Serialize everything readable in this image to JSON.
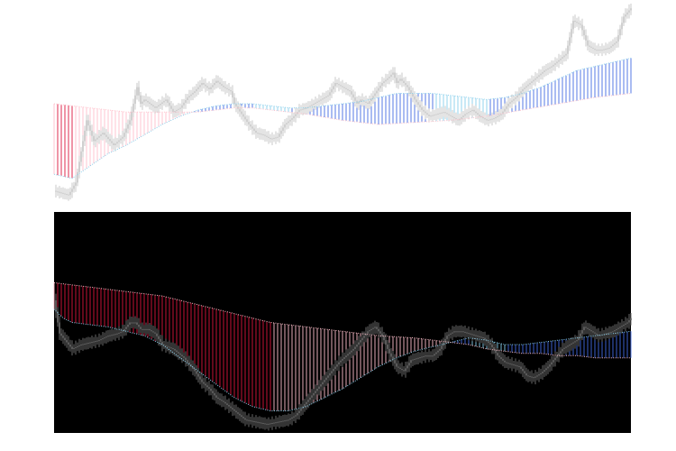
{
  "figure": {
    "background": "#ffffff"
  },
  "chart_data": [
    {
      "type": "line",
      "panel": "top",
      "background": "#ffffff",
      "x_range": [
        0,
        320
      ],
      "ylim": [
        0,
        100
      ],
      "grid": false,
      "legend": "none",
      "series": [
        {
          "role": "price",
          "color": "#c8c8c8",
          "anchors": [
            [
              0,
              8
            ],
            [
              8,
              6
            ],
            [
              12,
              12
            ],
            [
              18,
              42
            ],
            [
              22,
              32
            ],
            [
              27,
              36
            ],
            [
              33,
              30
            ],
            [
              38,
              34
            ],
            [
              42,
              42
            ],
            [
              46,
              58
            ],
            [
              48,
              50
            ],
            [
              50,
              52
            ],
            [
              56,
              48
            ],
            [
              62,
              52
            ],
            [
              66,
              46
            ],
            [
              70,
              48
            ],
            [
              74,
              53
            ],
            [
              78,
              56
            ],
            [
              82,
              60
            ],
            [
              86,
              57
            ],
            [
              90,
              61
            ],
            [
              94,
              58
            ],
            [
              98,
              56
            ],
            [
              100,
              50
            ],
            [
              104,
              45
            ],
            [
              108,
              40
            ],
            [
              112,
              36
            ],
            [
              116,
              35
            ],
            [
              120,
              33
            ],
            [
              124,
              34
            ],
            [
              128,
              40
            ],
            [
              132,
              43
            ],
            [
              136,
              47
            ],
            [
              140,
              48
            ],
            [
              144,
              50
            ],
            [
              148,
              52
            ],
            [
              152,
              54
            ],
            [
              156,
              60
            ],
            [
              160,
              58
            ],
            [
              164,
              56
            ],
            [
              168,
              50
            ],
            [
              170,
              52
            ],
            [
              174,
              50
            ],
            [
              178,
              55
            ],
            [
              182,
              60
            ],
            [
              186,
              63
            ],
            [
              188,
              65
            ],
            [
              190,
              60
            ],
            [
              192,
              62
            ],
            [
              196,
              58
            ],
            [
              200,
              52
            ],
            [
              204,
              47
            ],
            [
              208,
              44
            ],
            [
              212,
              45
            ],
            [
              216,
              46
            ],
            [
              220,
              44
            ],
            [
              224,
              42
            ],
            [
              228,
              45
            ],
            [
              232,
              47
            ],
            [
              236,
              44
            ],
            [
              240,
              42
            ],
            [
              244,
              43
            ],
            [
              248,
              45
            ],
            [
              252,
              50
            ],
            [
              256,
              53
            ],
            [
              260,
              57
            ],
            [
              264,
              60
            ],
            [
              268,
              63
            ],
            [
              272,
              66
            ],
            [
              276,
              68
            ],
            [
              280,
              71
            ],
            [
              284,
              74
            ],
            [
              288,
              90
            ],
            [
              292,
              88
            ],
            [
              296,
              78
            ],
            [
              300,
              76
            ],
            [
              304,
              76
            ],
            [
              308,
              77
            ],
            [
              312,
              80
            ],
            [
              316,
              92
            ],
            [
              320,
              96
            ]
          ]
        },
        {
          "role": "fast-ma",
          "color": "#87ceeb",
          "anchors": [
            [
              0,
              16
            ],
            [
              10,
              14
            ],
            [
              20,
              20
            ],
            [
              30,
              26
            ],
            [
              40,
              30
            ],
            [
              50,
              35
            ],
            [
              60,
              40
            ],
            [
              70,
              44
            ],
            [
              80,
              47
            ],
            [
              90,
              49
            ],
            [
              100,
              50
            ],
            [
              110,
              50
            ],
            [
              120,
              49
            ],
            [
              130,
              48
            ],
            [
              140,
              48
            ],
            [
              150,
              49
            ],
            [
              160,
              50
            ],
            [
              170,
              51
            ],
            [
              180,
              53
            ],
            [
              190,
              55
            ],
            [
              200,
              55
            ],
            [
              210,
              55
            ],
            [
              220,
              54
            ],
            [
              230,
              53
            ],
            [
              240,
              52
            ],
            [
              250,
              53
            ],
            [
              260,
              55
            ],
            [
              270,
              58
            ],
            [
              280,
              62
            ],
            [
              290,
              66
            ],
            [
              300,
              68
            ],
            [
              310,
              70
            ],
            [
              320,
              72
            ]
          ]
        },
        {
          "role": "slow-ma",
          "color": "#ffc0cb",
          "anchors": [
            [
              0,
              50
            ],
            [
              20,
              48
            ],
            [
              40,
              46
            ],
            [
              60,
              46
            ],
            [
              80,
              46
            ],
            [
              100,
              48
            ],
            [
              110,
              48
            ],
            [
              120,
              47
            ],
            [
              140,
              45
            ],
            [
              160,
              42
            ],
            [
              180,
              40
            ],
            [
              200,
              41
            ],
            [
              220,
              42
            ],
            [
              240,
              44
            ],
            [
              260,
              47
            ],
            [
              280,
              50
            ],
            [
              300,
              53
            ],
            [
              320,
              55
            ]
          ]
        }
      ],
      "band": {
        "between": [
          "fast-ma",
          "slow-ma"
        ],
        "colors": {
          "fast_above_rising": "#4169e1",
          "fast_above_falling": "#87ceeb",
          "fast_below_rising": "#ffc0cb",
          "fast_below_falling": "#dc143c"
        }
      }
    },
    {
      "type": "line",
      "panel": "bottom",
      "background": "#000000",
      "x_range": [
        0,
        320
      ],
      "ylim": [
        0,
        100
      ],
      "grid": false,
      "legend": "none",
      "series": [
        {
          "role": "price",
          "color": "#696969",
          "anchors": [
            [
              0,
              60
            ],
            [
              3,
              45
            ],
            [
              6,
              42
            ],
            [
              10,
              38
            ],
            [
              15,
              40
            ],
            [
              20,
              41
            ],
            [
              25,
              42
            ],
            [
              30,
              44
            ],
            [
              35,
              45
            ],
            [
              38,
              46
            ],
            [
              42,
              50
            ],
            [
              45,
              50
            ],
            [
              48,
              47
            ],
            [
              52,
              47
            ],
            [
              56,
              45
            ],
            [
              60,
              40
            ],
            [
              66,
              38
            ],
            [
              72,
              34
            ],
            [
              78,
              28
            ],
            [
              82,
              23
            ],
            [
              86,
              20
            ],
            [
              90,
              16
            ],
            [
              94,
              14
            ],
            [
              100,
              10
            ],
            [
              106,
              6
            ],
            [
              112,
              5
            ],
            [
              118,
              4
            ],
            [
              124,
              5
            ],
            [
              130,
              6
            ],
            [
              134,
              8
            ],
            [
              138,
              12
            ],
            [
              142,
              16
            ],
            [
              146,
              20
            ],
            [
              150,
              24
            ],
            [
              154,
              28
            ],
            [
              158,
              32
            ],
            [
              162,
              35
            ],
            [
              166,
              38
            ],
            [
              170,
              42
            ],
            [
              174,
              46
            ],
            [
              178,
              48
            ],
            [
              182,
              44
            ],
            [
              186,
              36
            ],
            [
              190,
              30
            ],
            [
              194,
              28
            ],
            [
              198,
              33
            ],
            [
              202,
              34
            ],
            [
              206,
              35
            ],
            [
              210,
              35
            ],
            [
              214,
              38
            ],
            [
              218,
              44
            ],
            [
              222,
              46
            ],
            [
              226,
              46
            ],
            [
              230,
              45
            ],
            [
              234,
              44
            ],
            [
              238,
              43
            ],
            [
              242,
              40
            ],
            [
              246,
              35
            ],
            [
              250,
              32
            ],
            [
              254,
              31
            ],
            [
              258,
              30
            ],
            [
              262,
              26
            ],
            [
              266,
              25
            ],
            [
              270,
              27
            ],
            [
              274,
              30
            ],
            [
              278,
              34
            ],
            [
              282,
              38
            ],
            [
              286,
              40
            ],
            [
              290,
              42
            ],
            [
              294,
              48
            ],
            [
              298,
              46
            ],
            [
              300,
              45
            ],
            [
              302,
              44
            ],
            [
              306,
              45
            ],
            [
              310,
              46
            ],
            [
              314,
              48
            ],
            [
              318,
              50
            ],
            [
              320,
              52
            ]
          ]
        },
        {
          "role": "fast-ma",
          "color": "#87ceeb",
          "anchors": [
            [
              0,
              56
            ],
            [
              5,
              52
            ],
            [
              10,
              50
            ],
            [
              20,
              49
            ],
            [
              30,
              48
            ],
            [
              40,
              46
            ],
            [
              50,
              44
            ],
            [
              60,
              40
            ],
            [
              70,
              34
            ],
            [
              80,
              28
            ],
            [
              90,
              22
            ],
            [
              100,
              16
            ],
            [
              105,
              14
            ],
            [
              110,
              12
            ],
            [
              115,
              11
            ],
            [
              120,
              10
            ],
            [
              125,
              10
            ],
            [
              130,
              10
            ],
            [
              135,
              11
            ],
            [
              140,
              12
            ],
            [
              150,
              16
            ],
            [
              160,
              20
            ],
            [
              170,
              25
            ],
            [
              180,
              30
            ],
            [
              190,
              34
            ],
            [
              200,
              37
            ],
            [
              210,
              39
            ],
            [
              220,
              41
            ],
            [
              230,
              43
            ],
            [
              240,
              42
            ],
            [
              250,
              40
            ],
            [
              260,
              40
            ],
            [
              270,
              41
            ],
            [
              280,
              42
            ],
            [
              290,
              43
            ],
            [
              300,
              44
            ],
            [
              310,
              45
            ],
            [
              320,
              46
            ]
          ]
        },
        {
          "role": "slow-ma",
          "color": "#ffc0cb",
          "anchors": [
            [
              0,
              68
            ],
            [
              20,
              66
            ],
            [
              40,
              64
            ],
            [
              60,
              62
            ],
            [
              80,
              58
            ],
            [
              100,
              54
            ],
            [
              120,
              50
            ],
            [
              140,
              48
            ],
            [
              160,
              46
            ],
            [
              180,
              44
            ],
            [
              200,
              43
            ],
            [
              210,
              42
            ],
            [
              220,
              41
            ],
            [
              230,
              40
            ],
            [
              240,
              38
            ],
            [
              250,
              37
            ],
            [
              260,
              36
            ],
            [
              270,
              36
            ],
            [
              280,
              35
            ],
            [
              290,
              35
            ],
            [
              300,
              34
            ],
            [
              310,
              34
            ],
            [
              320,
              34
            ]
          ]
        }
      ],
      "band": {
        "between": [
          "fast-ma",
          "slow-ma"
        ],
        "colors": {
          "fast_above_rising": "#4169e1",
          "fast_above_falling": "#87ceeb",
          "fast_below_rising": "#ffc0cb",
          "fast_below_falling": "#dc143c"
        }
      }
    }
  ]
}
